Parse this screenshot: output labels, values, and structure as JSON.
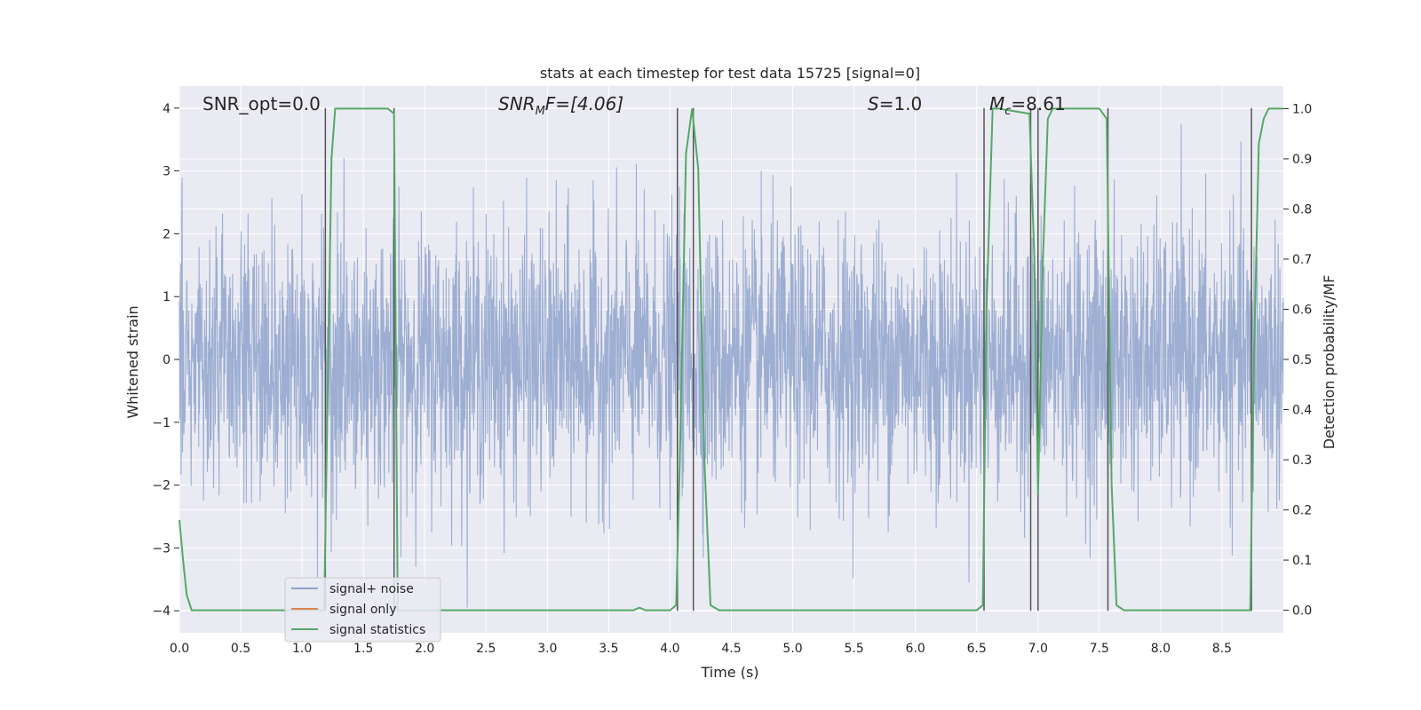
{
  "chart_data": {
    "type": "line",
    "title": "stats at each timestep for test data 15725 [signal=0]",
    "xlabel": "Time (s)",
    "ylabel": "Whitened strain",
    "y2label": "Detection probability/MF",
    "xlim": [
      0.0,
      9.0
    ],
    "ylim": [
      -4.35,
      4.35
    ],
    "y2lim": [
      -0.045,
      1.045
    ],
    "xticks": [
      "0.0",
      "0.5",
      "1.0",
      "1.5",
      "2.0",
      "2.5",
      "3.0",
      "3.5",
      "4.0",
      "4.5",
      "5.0",
      "5.5",
      "6.0",
      "6.5",
      "7.0",
      "7.5",
      "8.0",
      "8.5"
    ],
    "yticks": [
      "−4",
      "−3",
      "−2",
      "−1",
      "0",
      "1",
      "2",
      "3",
      "4"
    ],
    "y2ticks": [
      "0.0",
      "0.1",
      "0.2",
      "0.3",
      "0.4",
      "0.5",
      "0.6",
      "0.7",
      "0.8",
      "0.9",
      "1.0"
    ],
    "grid": true,
    "legend_position": "lower-left",
    "annotations": {
      "snr_opt": "SNR_opt=0.0",
      "snr_mf_prefix": "SNR",
      "snr_mf_sub": "M",
      "snr_mf_suffix": "F=[4.06]",
      "s_label": "S",
      "s_value": "=1.0",
      "mc_label": "M",
      "mc_sub": "c",
      "mc_value": "=8.61"
    },
    "series": [
      {
        "name": "signal+ noise",
        "color": "#8fa3cc",
        "noise_std": 1.05,
        "value_range": [
          -4.0,
          4.0
        ]
      },
      {
        "name": "signal only",
        "color": "#dd8452",
        "values": []
      },
      {
        "name": "signal statistics",
        "color": "#55a868",
        "axis": "right",
        "x": [
          0.0,
          0.03,
          0.06,
          0.1,
          0.15,
          1.18,
          1.2,
          1.24,
          1.27,
          1.65,
          1.7,
          1.75,
          1.78,
          3.7,
          3.75,
          3.8,
          4.0,
          4.05,
          4.08,
          4.13,
          4.18,
          4.23,
          4.28,
          4.33,
          4.4,
          6.5,
          6.55,
          6.58,
          6.63,
          6.68,
          6.93,
          6.97,
          7.0,
          7.04,
          7.08,
          7.12,
          7.5,
          7.56,
          7.6,
          7.64,
          7.7,
          8.73,
          8.76,
          8.8,
          8.84,
          8.88,
          8.94,
          9.0
        ],
        "values": [
          0.18,
          0.1,
          0.03,
          0.0,
          0.0,
          0.0,
          0.3,
          0.9,
          1.0,
          1.0,
          1.0,
          0.99,
          0.0,
          0.0,
          0.005,
          0.0,
          0.0,
          0.01,
          0.3,
          0.91,
          1.0,
          0.88,
          0.3,
          0.01,
          0.0,
          0.0,
          0.01,
          0.6,
          1.0,
          1.0,
          0.99,
          0.7,
          0.23,
          0.7,
          0.98,
          1.0,
          1.0,
          0.98,
          0.25,
          0.01,
          0.0,
          0.0,
          0.5,
          0.93,
          0.98,
          1.0,
          1.0,
          1.0
        ]
      }
    ],
    "vertical_markers": [
      1.19,
      1.75,
      4.06,
      4.19,
      6.56,
      6.94,
      7.0,
      7.57,
      8.74
    ]
  }
}
